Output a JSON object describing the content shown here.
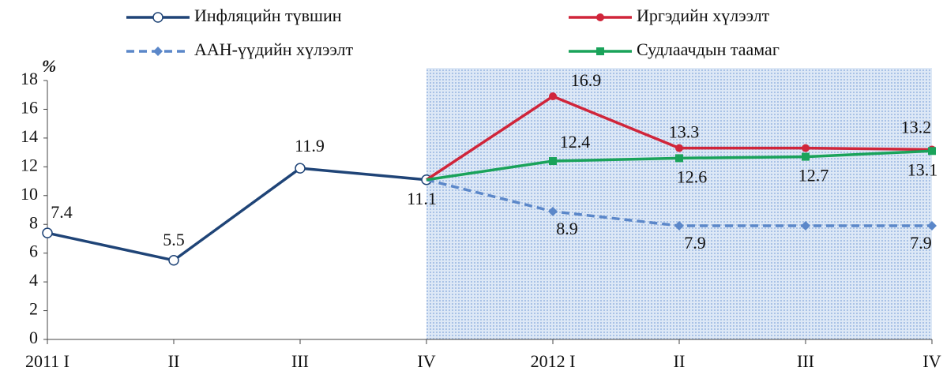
{
  "chart_data": {
    "type": "line",
    "ylabel": "%",
    "categories": [
      "2011 I",
      "II",
      "III",
      "IV",
      "2012 I",
      "II",
      "III",
      "IV"
    ],
    "series": [
      {
        "name": "Инфляцийн түвшин",
        "color": "#1f4477",
        "marker": "circle-open",
        "dash": false,
        "values": [
          7.4,
          5.5,
          11.9,
          11.1,
          null,
          null,
          null,
          null
        ],
        "value_labels": [
          "7.4",
          "5.5",
          "11.9",
          "11.1",
          null,
          null,
          null,
          null
        ]
      },
      {
        "name": "Иргэдийн хүлээлт",
        "color": "#d0253a",
        "marker": "circle",
        "dash": false,
        "values": [
          null,
          null,
          null,
          11.1,
          16.9,
          13.3,
          13.3,
          13.2
        ],
        "value_labels": [
          null,
          null,
          null,
          null,
          "16.9",
          "13.3",
          null,
          "13.2"
        ]
      },
      {
        "name": "ААН-үүдийн хүлээлт",
        "color": "#5b87c9",
        "marker": "diamond",
        "dash": true,
        "values": [
          null,
          null,
          null,
          11.1,
          8.9,
          7.9,
          7.9,
          7.9
        ],
        "value_labels": [
          null,
          null,
          null,
          null,
          "8.9",
          "7.9",
          null,
          "7.9"
        ]
      },
      {
        "name": "Судлаачдын таамаг",
        "color": "#1aa35a",
        "marker": "square",
        "dash": false,
        "values": [
          null,
          null,
          null,
          11.1,
          12.4,
          12.6,
          12.7,
          13.1
        ],
        "value_labels": [
          null,
          null,
          null,
          null,
          "12.4",
          "12.6",
          "12.7",
          "13.1"
        ]
      }
    ],
    "ylim": [
      0,
      18
    ],
    "yticks": [
      0,
      2,
      4,
      6,
      8,
      10,
      12,
      14,
      16,
      18
    ]
  }
}
